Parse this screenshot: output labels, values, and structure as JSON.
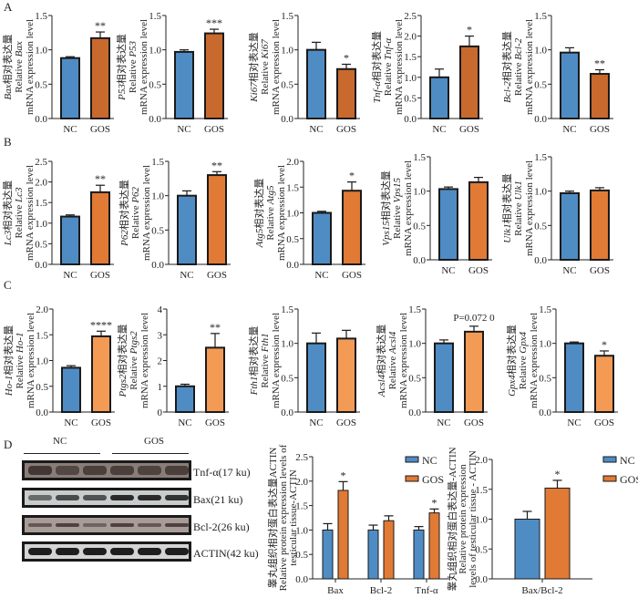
{
  "panels": [
    "A",
    "B",
    "C",
    "D"
  ],
  "colors": {
    "nc": "#4f8cc4",
    "gos_A": "#c8692e",
    "gos_B": "#e07a35",
    "gos_C": "#f39a55",
    "gos_D": "#e07a35",
    "axis": "#222222"
  },
  "chart_data": [
    {
      "panel": "A",
      "type": "bar",
      "gene": "Bax",
      "cn": "相对表达量",
      "rel": "Relative",
      "unit": "mRNA expression level",
      "categories": [
        "NC",
        "GOS"
      ],
      "values": [
        0.88,
        1.17
      ],
      "errors": [
        0.02,
        0.09
      ],
      "sig": [
        "",
        "**"
      ],
      "ylim": [
        0,
        1.5
      ],
      "ticks": [
        "0.0",
        "0.5",
        "1.0",
        "1.5"
      ]
    },
    {
      "panel": "A",
      "type": "bar",
      "gene": "P53",
      "cn": "相对表达量",
      "rel": "Relative",
      "unit": "mRNA expression level",
      "categories": [
        "NC",
        "GOS"
      ],
      "values": [
        0.97,
        1.24
      ],
      "errors": [
        0.03,
        0.06
      ],
      "sig": [
        "",
        "***"
      ],
      "ylim": [
        0,
        1.5
      ],
      "ticks": [
        "0.0",
        "0.5",
        "1.0",
        "1.5"
      ]
    },
    {
      "panel": "A",
      "type": "bar",
      "gene": "Ki67",
      "cn": "相对表达量",
      "rel": "Relative",
      "unit": "mRNA expression level",
      "categories": [
        "NC",
        "GOS"
      ],
      "values": [
        1.0,
        0.72
      ],
      "errors": [
        0.11,
        0.07
      ],
      "sig": [
        "",
        "*"
      ],
      "ylim": [
        0,
        1.5
      ],
      "ticks": [
        "0.0",
        "0.5",
        "1.0",
        "1.5"
      ]
    },
    {
      "panel": "A",
      "type": "bar",
      "gene": "Tnf-α",
      "cn": "相对表达量",
      "rel": "Relative",
      "unit": "mRNA expression level",
      "categories": [
        "NC",
        "GOS"
      ],
      "values": [
        1.0,
        1.75
      ],
      "errors": [
        0.2,
        0.25
      ],
      "sig": [
        "",
        "*"
      ],
      "ylim": [
        0,
        2.5
      ],
      "ticks": [
        "0.0",
        "0.5",
        "1.0",
        "1.5",
        "2.0",
        "2.5"
      ]
    },
    {
      "panel": "A",
      "type": "bar",
      "gene": "Bcl-2",
      "cn": "相对表达量",
      "rel": "Relative",
      "unit": "mRNA expression level",
      "categories": [
        "NC",
        "GOS"
      ],
      "values": [
        0.96,
        0.65
      ],
      "errors": [
        0.07,
        0.06
      ],
      "sig": [
        "",
        "**"
      ],
      "ylim": [
        0,
        1.5
      ],
      "ticks": [
        "0.0",
        "0.5",
        "1.0",
        "1.5"
      ]
    },
    {
      "panel": "B",
      "type": "bar",
      "gene": "Lc3",
      "cn": "相对表达量",
      "rel": "Relative",
      "unit": "mRNA expression level",
      "categories": [
        "NC",
        "GOS"
      ],
      "values": [
        1.16,
        1.75
      ],
      "errors": [
        0.04,
        0.17
      ],
      "sig": [
        "",
        "**"
      ],
      "ylim": [
        0,
        2.5
      ],
      "ticks": [
        "0.0",
        "0.5",
        "1.0",
        "1.5",
        "2.0",
        "2.5"
      ]
    },
    {
      "panel": "B",
      "type": "bar",
      "gene": "P62",
      "cn": "相对表达量",
      "rel": "Relative",
      "unit": "mRNA expression level",
      "categories": [
        "NC",
        "GOS"
      ],
      "values": [
        1.0,
        1.3
      ],
      "errors": [
        0.07,
        0.05
      ],
      "sig": [
        "",
        "**"
      ],
      "ylim": [
        0,
        1.5
      ],
      "ticks": [
        "0.0",
        "0.5",
        "1.0",
        "1.5"
      ]
    },
    {
      "panel": "B",
      "type": "bar",
      "gene": "Atg5",
      "cn": "相对表达量",
      "rel": "Relative",
      "unit": "mRNA expression level",
      "categories": [
        "NC",
        "GOS"
      ],
      "values": [
        1.0,
        1.43
      ],
      "errors": [
        0.03,
        0.17
      ],
      "sig": [
        "",
        "*"
      ],
      "ylim": [
        0,
        2.0
      ],
      "ticks": [
        "0.0",
        "0.5",
        "1.0",
        "1.5",
        "2.0"
      ]
    },
    {
      "panel": "B",
      "type": "bar",
      "gene": "Vps15",
      "cn": "相对表达量",
      "rel": "Relative",
      "unit": "mRNA expression level",
      "categories": [
        "NC",
        "GOS"
      ],
      "values": [
        1.03,
        1.13
      ],
      "errors": [
        0.03,
        0.07
      ],
      "sig": [
        "",
        ""
      ],
      "ylim": [
        0,
        1.5
      ],
      "ticks": [
        "0.0",
        "0.5",
        "1.0",
        "1.5"
      ]
    },
    {
      "panel": "B",
      "type": "bar",
      "gene": "Ulk1",
      "cn": "相对表达量",
      "rel": "Relative",
      "unit": "mRNA expression level",
      "categories": [
        "NC",
        "GOS"
      ],
      "values": [
        0.97,
        1.01
      ],
      "errors": [
        0.03,
        0.04
      ],
      "sig": [
        "",
        ""
      ],
      "ylim": [
        0,
        1.5
      ],
      "ticks": [
        "0.0",
        "0.5",
        "1.0",
        "1.5"
      ]
    },
    {
      "panel": "C",
      "type": "bar",
      "gene": "Ho-1",
      "cn": "相对表达量",
      "rel": "Relative",
      "unit": "mRNA expression level",
      "categories": [
        "NC",
        "GOS"
      ],
      "values": [
        0.86,
        1.47
      ],
      "errors": [
        0.04,
        0.1
      ],
      "sig": [
        "",
        "****"
      ],
      "ylim": [
        0,
        2.0
      ],
      "ticks": [
        "0.0",
        "0.5",
        "1.0",
        "1.5",
        "2.0"
      ]
    },
    {
      "panel": "C",
      "type": "bar",
      "gene": "Ptgs2",
      "cn": "相对表达量",
      "rel": "Relative",
      "unit": "mRNA expression level",
      "categories": [
        "NC",
        "GOS"
      ],
      "values": [
        1.0,
        2.5
      ],
      "errors": [
        0.08,
        0.55
      ],
      "sig": [
        "",
        "**"
      ],
      "ylim": [
        0,
        4
      ],
      "ticks": [
        "0",
        "1",
        "2",
        "3",
        "4"
      ]
    },
    {
      "panel": "C",
      "type": "bar",
      "gene": "Fth1",
      "cn": "相对表达量",
      "rel": "Relative",
      "unit": "mRNA expression level",
      "categories": [
        "NC",
        "GOS"
      ],
      "values": [
        1.0,
        1.07
      ],
      "errors": [
        0.15,
        0.12
      ],
      "sig": [
        "",
        ""
      ],
      "ylim": [
        0,
        1.5
      ],
      "ticks": [
        "0.0",
        "0.5",
        "1.0",
        "1.5"
      ]
    },
    {
      "panel": "C",
      "type": "bar",
      "gene": "Acsl4",
      "cn": "相对表达量",
      "rel": "Relative",
      "unit": "mRNA expression level",
      "categories": [
        "NC",
        "GOS"
      ],
      "values": [
        1.0,
        1.17
      ],
      "errors": [
        0.05,
        0.08
      ],
      "sig": [
        "",
        "P=0.072 0"
      ],
      "ylim": [
        0,
        1.5
      ],
      "ticks": [
        "0.0",
        "0.5",
        "1.0",
        "1.5"
      ]
    },
    {
      "panel": "C",
      "type": "bar",
      "gene": "Gpx4",
      "cn": "相对表达量",
      "rel": "Relative",
      "unit": "mRNA expression level",
      "categories": [
        "NC",
        "GOS"
      ],
      "values": [
        1.0,
        0.82
      ],
      "errors": [
        0.02,
        0.07
      ],
      "sig": [
        "",
        "*"
      ],
      "ylim": [
        0,
        1.5
      ],
      "ticks": [
        "0.0",
        "0.5",
        "1.0",
        "1.5"
      ]
    },
    {
      "panel": "D",
      "type": "bar",
      "ylabel": [
        "睾丸组织相对蛋白表达量ACTIN",
        "Relative protein expression levels of",
        "testicular tissue-ACTIN"
      ],
      "categories": [
        "Bax",
        "Bcl-2",
        "Tnf-α"
      ],
      "series": [
        {
          "name": "NC",
          "values": [
            1.0,
            1.0,
            1.0
          ],
          "errors": [
            0.13,
            0.1,
            0.07
          ]
        },
        {
          "name": "GOS",
          "values": [
            1.81,
            1.19,
            1.35
          ],
          "errors": [
            0.18,
            0.1,
            0.08
          ]
        }
      ],
      "sig": [
        "*",
        "",
        "*"
      ],
      "ylim": [
        0,
        2.5
      ],
      "ticks": [
        "0.0",
        "0.5",
        "1.0",
        "1.5",
        "2.0",
        "2.5"
      ],
      "legend": "top-right"
    },
    {
      "panel": "D",
      "type": "bar",
      "ylabel": [
        "睾丸组织相对蛋白表达量-ACTIN",
        "Relative protein expression",
        "levels of testicular tissue - ACTIN"
      ],
      "categories": [
        "Bax/Bcl-2"
      ],
      "series": [
        {
          "name": "NC",
          "values": [
            1.0
          ],
          "errors": [
            0.13
          ]
        },
        {
          "name": "GOS",
          "values": [
            1.52
          ],
          "errors": [
            0.13
          ]
        }
      ],
      "sig": [
        "*"
      ],
      "ylim": [
        0,
        2.0
      ],
      "ticks": [
        "0.0",
        "0.5",
        "1.0",
        "1.5",
        "2.0"
      ],
      "legend": "right"
    }
  ],
  "blot": {
    "groups": [
      "NC",
      "GOS"
    ],
    "bands": [
      "Tnf-α(17 ku)",
      "Bax(21 ku)",
      "Bcl-2(26 ku)",
      "ACTIN(42 ku)"
    ]
  }
}
